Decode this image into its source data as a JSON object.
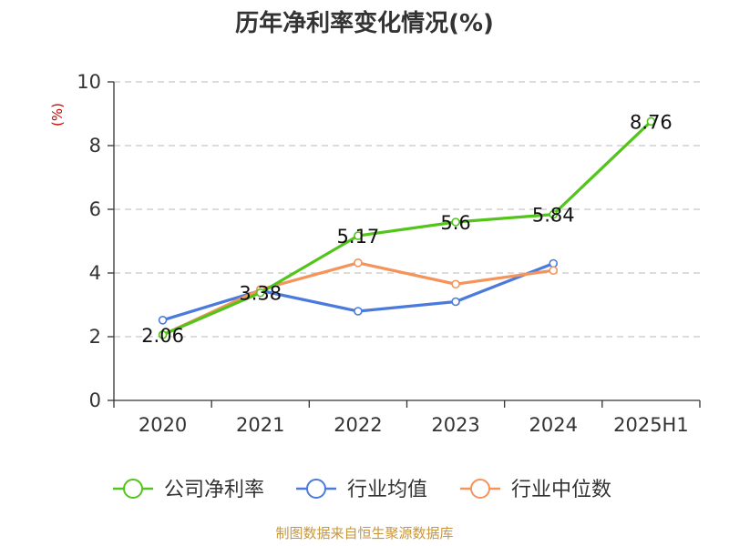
{
  "chart_data": {
    "type": "line",
    "title": "历年净利率变化情况(%)",
    "ylabel": "(%)",
    "xlabel": "",
    "categories": [
      "2020",
      "2021",
      "2022",
      "2023",
      "2024",
      "2025H1"
    ],
    "ylim": [
      0,
      10
    ],
    "yticks": [
      0,
      2,
      4,
      6,
      8,
      10
    ],
    "grid": true,
    "legend_position": "bottom",
    "series": [
      {
        "name": "公司净利率",
        "color": "#52c41a",
        "values": [
          2.06,
          3.38,
          5.17,
          5.6,
          5.84,
          8.76
        ],
        "show_labels": true
      },
      {
        "name": "行业均值",
        "color": "#4a7bdc",
        "values": [
          2.52,
          3.45,
          2.8,
          3.1,
          4.3,
          null
        ],
        "show_labels": false
      },
      {
        "name": "行业中位数",
        "color": "#f4935a",
        "values": [
          2.06,
          3.48,
          4.32,
          3.65,
          4.08,
          null
        ],
        "show_labels": false
      }
    ],
    "data_labels": [
      "2.06",
      "3.38",
      "5.17",
      "5.6",
      "5.84",
      "8.76"
    ]
  },
  "source": "制图数据来自恒生聚源数据库",
  "colors": {
    "ylabel": "#cc0000",
    "source": "#c8973d",
    "grid": "#c8c8c8",
    "axis": "#333333"
  }
}
